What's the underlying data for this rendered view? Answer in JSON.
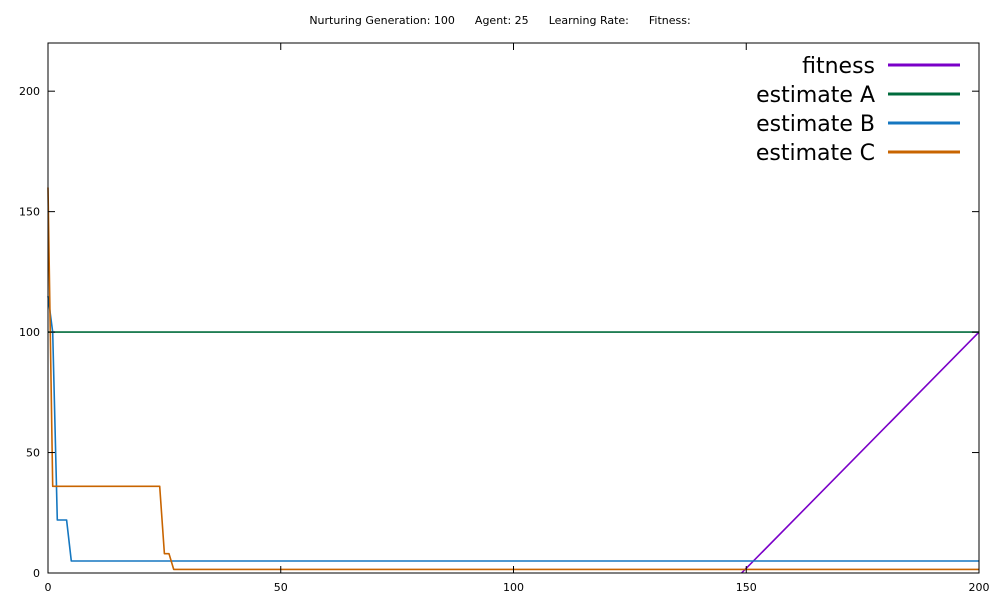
{
  "header": {
    "generation": "Nurturing Generation: 100",
    "agent": "Agent: 25",
    "learning_rate": "Learning Rate:",
    "fitness": "Fitness:"
  },
  "chart_data": {
    "type": "line",
    "xlim": [
      0,
      200
    ],
    "ylim": [
      0,
      220
    ],
    "x_ticks": [
      0,
      50,
      100,
      150,
      200
    ],
    "y_ticks": [
      0,
      50,
      100,
      150,
      200
    ],
    "grid": false,
    "legend_position": "top-right",
    "series": [
      {
        "name": "fitness",
        "color": "#7a00c8",
        "points": [
          [
            149,
            0
          ],
          [
            200,
            100
          ]
        ]
      },
      {
        "name": "estimate A",
        "color": "#006b3c",
        "points": [
          [
            0,
            100
          ],
          [
            200,
            100
          ]
        ]
      },
      {
        "name": "estimate B",
        "color": "#1577c0",
        "points": [
          [
            0,
            115
          ],
          [
            1,
            100
          ],
          [
            2,
            22
          ],
          [
            4,
            22
          ],
          [
            5,
            5
          ],
          [
            200,
            5
          ]
        ]
      },
      {
        "name": "estimate C",
        "color": "#c86400",
        "points": [
          [
            0,
            160
          ],
          [
            1,
            36
          ],
          [
            24,
            36
          ],
          [
            25,
            8
          ],
          [
            26,
            8
          ],
          [
            27,
            1.5
          ],
          [
            200,
            1.5
          ]
        ]
      }
    ]
  }
}
